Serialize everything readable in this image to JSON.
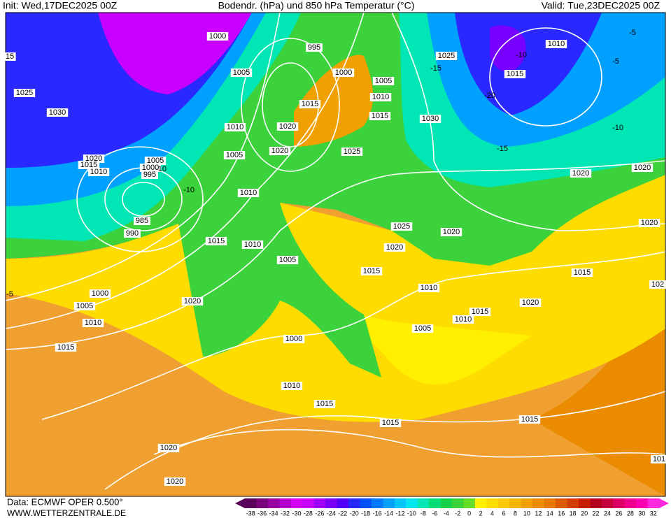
{
  "header": {
    "init": "Init: Wed,17DEC2025 00Z",
    "title": "Bodendr. (hPa) und 850 hPa Temperatur (°C)",
    "valid": "Valid: Tue,23DEC2025 00Z"
  },
  "footer": {
    "source": "Data: ECMWF OPER 0.500°",
    "site": "WWW.WETTERZENTRALE.DE"
  },
  "isobar_labels": [
    "1000",
    "995",
    "1005",
    "1000",
    "1005",
    "1010",
    "1015",
    "1015",
    "1030",
    "1025",
    "1025",
    "1010",
    "1015",
    "1030",
    "1010",
    "1020",
    "1020",
    "1025",
    "1005",
    "1020",
    "1015",
    "1010",
    "1005",
    "1000",
    "995",
    "1010",
    "1020",
    "1020",
    "985",
    "990",
    "1015",
    "1010",
    "1025",
    "1020",
    "1020",
    "1020",
    "1005",
    "1015",
    "1015",
    "1010",
    "102",
    "1000",
    "1005",
    "1010",
    "1020",
    "1020",
    "1015",
    "1010",
    "1005",
    "1015",
    "1000",
    "1010",
    "1015",
    "1015",
    "1015",
    "1020",
    "1020",
    "101",
    "15"
  ],
  "isotherm_labels": [
    "-5",
    "-10",
    "-15",
    "-20",
    "-10",
    "-15",
    "-5",
    "-5",
    "-10",
    "-10"
  ],
  "legend": {
    "values": [
      -38,
      -36,
      -34,
      -32,
      -30,
      -28,
      -26,
      -24,
      -22,
      -20,
      -18,
      -16,
      -14,
      -12,
      -10,
      -8,
      -6,
      -4,
      -2,
      0,
      2,
      4,
      6,
      8,
      10,
      12,
      14,
      16,
      18,
      20,
      22,
      24,
      26,
      28,
      30,
      32
    ],
    "colors": [
      "#5a005a",
      "#780078",
      "#9600a0",
      "#b400c8",
      "#d200f0",
      "#c800ff",
      "#a000ff",
      "#7800ff",
      "#5000ff",
      "#2828ff",
      "#0050ff",
      "#0078ff",
      "#00a0ff",
      "#00c8ff",
      "#00e6f0",
      "#00e6b4",
      "#00dc78",
      "#14d24a",
      "#3cd23c",
      "#64dc28",
      "#fff000",
      "#ffdc00",
      "#ffc800",
      "#f5b400",
      "#f0a000",
      "#eb8c00",
      "#e67800",
      "#dc5a00",
      "#d23c00",
      "#c81e00",
      "#b4001e",
      "#c8003c",
      "#dc0064",
      "#f0008c",
      "#ff00b4",
      "#ff28dc"
    ]
  }
}
